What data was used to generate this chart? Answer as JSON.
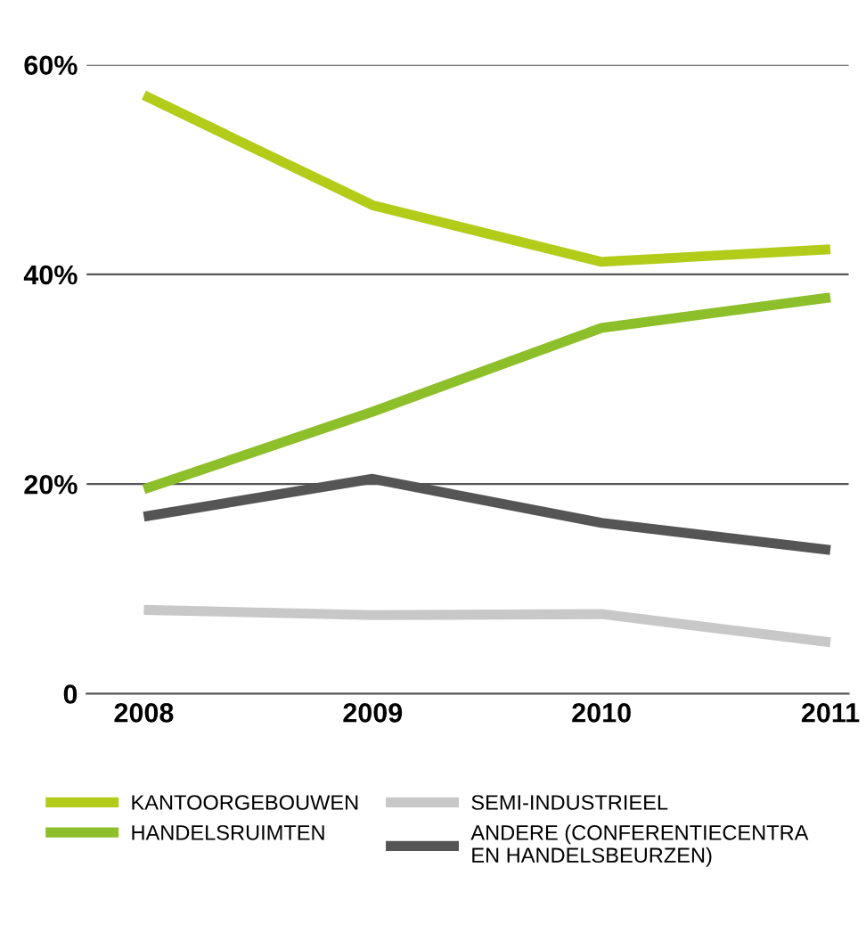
{
  "chart_data": {
    "type": "line",
    "categories": [
      "2008",
      "2009",
      "2010",
      "2011"
    ],
    "series": [
      {
        "name": "KANTOORGEBOUWEN",
        "color": "#b3cc1a",
        "values": [
          57.1,
          46.6,
          41.2,
          42.4
        ]
      },
      {
        "name": "HANDELSRUIMTEN",
        "color": "#8dbf2a",
        "values": [
          19.5,
          26.9,
          34.9,
          37.8
        ]
      },
      {
        "name": "SEMI-INDUSTRIEEL",
        "color": "#c8c8c8",
        "values": [
          8.0,
          7.5,
          7.6,
          4.9
        ]
      },
      {
        "name": "ANDERE (CONFERENTIECENTRA\nEN HANDELSBEURZEN)",
        "color": "#555555",
        "values": [
          16.9,
          20.5,
          16.3,
          13.7
        ]
      }
    ],
    "ylim": [
      0,
      60
    ],
    "yticks": [
      {
        "value": 0,
        "label": "0"
      },
      {
        "value": 20,
        "label": "20%"
      },
      {
        "value": 40,
        "label": "40%"
      },
      {
        "value": 60,
        "label": "60%"
      }
    ],
    "grid": "y",
    "legend": "bottom",
    "marker": "none",
    "line_style": "solid"
  }
}
